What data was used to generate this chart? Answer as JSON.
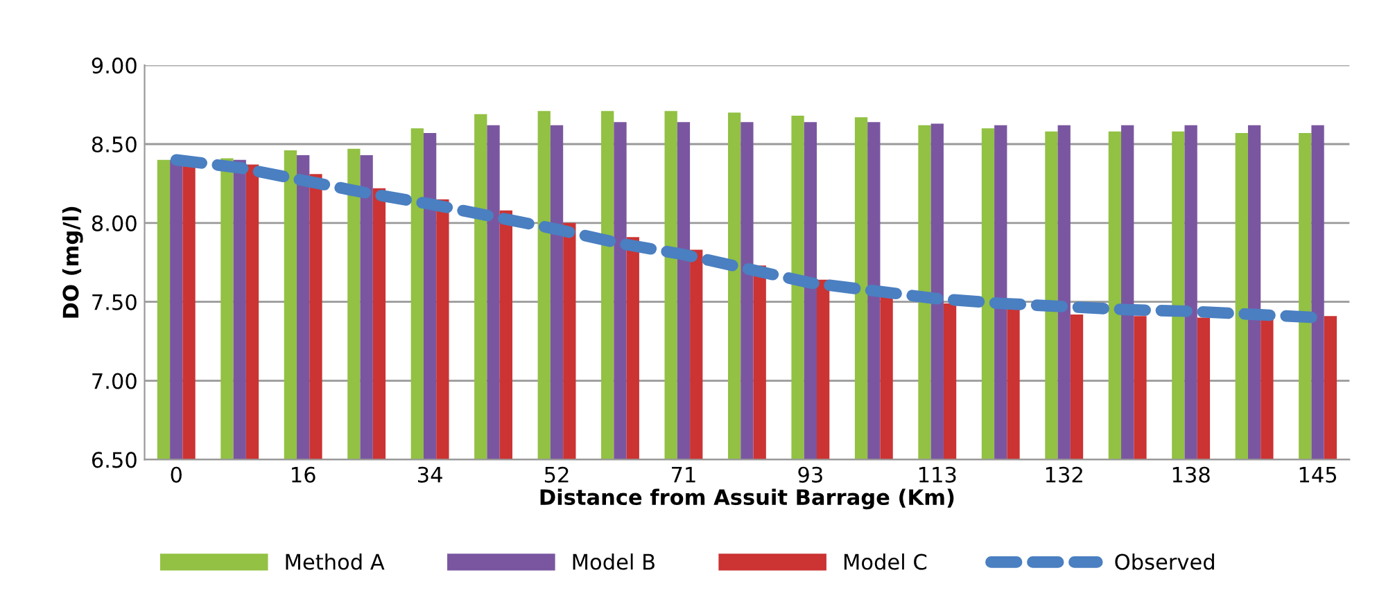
{
  "chart_data": {
    "type": "bar",
    "xlabel": "Distance from Assuit Barrage (Km)",
    "ylabel": "DO (mg/l)",
    "categories": [
      "0",
      null,
      "16",
      null,
      "34",
      null,
      "52",
      null,
      "71",
      null,
      "93",
      null,
      "113",
      null,
      "132",
      null,
      "138",
      null,
      "145"
    ],
    "series": [
      {
        "name": "Method A",
        "color": "#92c143",
        "values": [
          8.4,
          8.41,
          8.46,
          8.47,
          8.6,
          8.69,
          8.71,
          8.71,
          8.71,
          8.7,
          8.68,
          8.67,
          8.62,
          8.6,
          8.58,
          8.58,
          8.58,
          8.57,
          8.57
        ]
      },
      {
        "name": "Model B",
        "color": "#7a56a0",
        "values": [
          8.4,
          8.4,
          8.43,
          8.43,
          8.57,
          8.62,
          8.62,
          8.64,
          8.64,
          8.64,
          8.64,
          8.64,
          8.63,
          8.62,
          8.62,
          8.62,
          8.62,
          8.62,
          8.62
        ]
      },
      {
        "name": "Model C",
        "color": "#cc3333",
        "values": [
          8.37,
          8.37,
          8.31,
          8.22,
          8.15,
          8.08,
          8.0,
          7.91,
          7.83,
          7.73,
          7.64,
          7.55,
          7.49,
          7.46,
          7.42,
          7.41,
          7.4,
          7.4,
          7.41
        ]
      },
      {
        "name": "Observed",
        "color": "#4a7fc1",
        "type": "line",
        "line_style": "dashed",
        "values": [
          8.4,
          8.35,
          8.27,
          8.19,
          8.12,
          8.04,
          7.96,
          7.87,
          7.8,
          7.71,
          7.62,
          7.57,
          7.52,
          7.49,
          7.47,
          7.45,
          7.44,
          7.42,
          7.4
        ]
      }
    ],
    "ylim": [
      6.5,
      9.0
    ],
    "yticks": [
      {
        "value": 6.5,
        "label": "6.50"
      },
      {
        "value": 7.0,
        "label": "7.00"
      },
      {
        "value": 7.5,
        "label": "7.50"
      },
      {
        "value": 8.0,
        "label": "8.00"
      },
      {
        "value": 8.5,
        "label": "8.50"
      },
      {
        "value": 9.0,
        "label": "9.00"
      }
    ],
    "grid": "y",
    "legend": "bottom"
  }
}
